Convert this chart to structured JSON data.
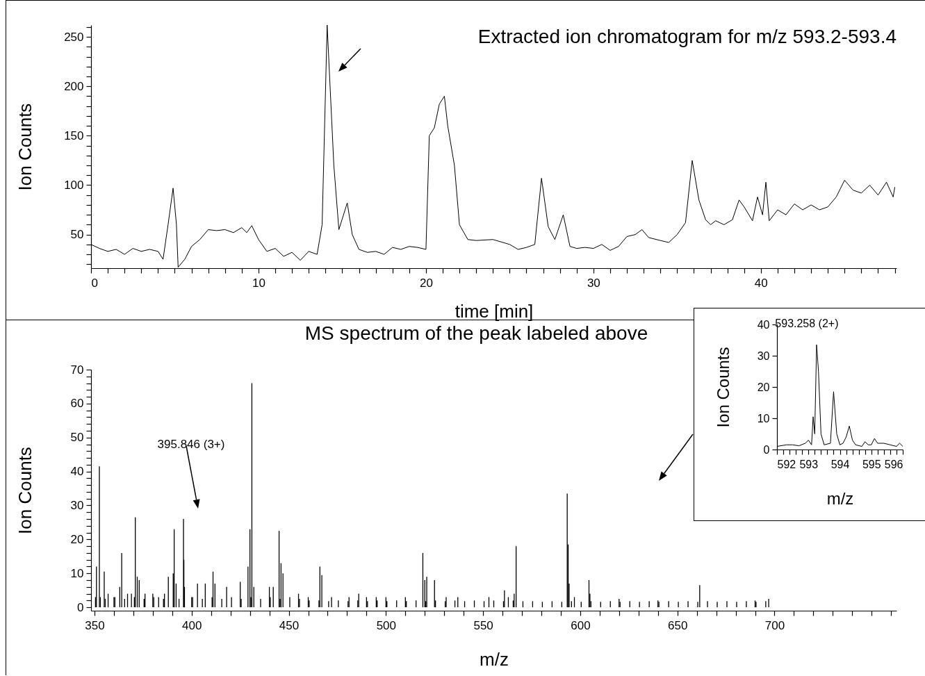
{
  "chart_data": [
    {
      "type": "line",
      "title": "Extracted ion chromatogram for m/z 593.2-593.4",
      "xlabel": "time [min]",
      "ylabel": "Ion Counts",
      "x": [
        0,
        0.5,
        1,
        1.5,
        2,
        2.5,
        3,
        3.5,
        4,
        4.3,
        4.6,
        4.9,
        5.1,
        5.2,
        5.6,
        6,
        6.5,
        7,
        7.5,
        8,
        8.5,
        9,
        9.3,
        9.6,
        10,
        10.5,
        11,
        11.5,
        12,
        12.5,
        13,
        13.5,
        13.8,
        14.1,
        14.5,
        14.8,
        15.3,
        15.6,
        16,
        16.5,
        17,
        17.5,
        18,
        18.5,
        19,
        19.5,
        20,
        20.2,
        20.5,
        20.8,
        21.1,
        21.3,
        21.7,
        22,
        22.5,
        23,
        24,
        25,
        25.5,
        26,
        26.5,
        26.9,
        27.3,
        27.7,
        28.2,
        28.6,
        29,
        29.5,
        30,
        30.5,
        31,
        31.5,
        32,
        32.5,
        32.9,
        33.3,
        34,
        34.5,
        35,
        35.5,
        35.9,
        36.3,
        36.7,
        37,
        37.3,
        37.8,
        38.3,
        38.7,
        39,
        39.5,
        39.8,
        40.1,
        40.3,
        40.5,
        41,
        41.5,
        42,
        42.5,
        43,
        43.5,
        44,
        44.5,
        45,
        45.5,
        46,
        46.5,
        47,
        47.5,
        47.9,
        48
      ],
      "series": [
        {
          "color": "#000000",
          "values": [
            40,
            36,
            33,
            35,
            30,
            36,
            33,
            35,
            33,
            25,
            60,
            97,
            60,
            17,
            25,
            38,
            45,
            55,
            54,
            55,
            52,
            57,
            52,
            59,
            45,
            33,
            36,
            28,
            32,
            24,
            33,
            30,
            60,
            262,
            120,
            55,
            82,
            50,
            35,
            32,
            33,
            30,
            37,
            35,
            38,
            37,
            35,
            150,
            158,
            182,
            190,
            160,
            120,
            60,
            45,
            44,
            45,
            40,
            35,
            37,
            40,
            107,
            58,
            45,
            70,
            38,
            36,
            37,
            36,
            40,
            34,
            38,
            48,
            50,
            55,
            47,
            44,
            42,
            50,
            62,
            125,
            85,
            65,
            60,
            64,
            60,
            65,
            85,
            78,
            64,
            88,
            70,
            103,
            64,
            75,
            70,
            81,
            75,
            80,
            75,
            78,
            88,
            105,
            95,
            92,
            100,
            90,
            103,
            88,
            98
          ]
        }
      ],
      "xlim": [
        0,
        48.1
      ],
      "ylim": [
        16,
        262
      ],
      "xticks": [
        0,
        {
          "value": 1,
          "label": null
        },
        {
          "value": 2,
          "label": null
        },
        {
          "value": 3,
          "label": null
        },
        {
          "value": 4,
          "label": null
        },
        {
          "value": 5,
          "label": null
        },
        {
          "value": 6,
          "label": null
        },
        {
          "value": 7,
          "label": null
        },
        {
          "value": 8,
          "label": null
        },
        {
          "value": 9,
          "label": null
        },
        10,
        {
          "value": 11,
          "label": null
        },
        {
          "value": 12,
          "label": null
        },
        {
          "value": 13,
          "label": null
        },
        {
          "value": 14,
          "label": null
        },
        {
          "value": 15,
          "label": null
        },
        {
          "value": 16,
          "label": null
        },
        {
          "value": 17,
          "label": null
        },
        {
          "value": 18,
          "label": null
        },
        {
          "value": 19,
          "label": null
        },
        20,
        {
          "value": 21,
          "label": null
        },
        {
          "value": 22,
          "label": null
        },
        {
          "value": 23,
          "label": null
        },
        {
          "value": 24,
          "label": null
        },
        {
          "value": 25,
          "label": null
        },
        {
          "value": 26,
          "label": null
        },
        {
          "value": 27,
          "label": null
        },
        {
          "value": 28,
          "label": null
        },
        {
          "value": 29,
          "label": null
        },
        30,
        {
          "value": 31,
          "label": null
        },
        {
          "value": 32,
          "label": null
        },
        {
          "value": 33,
          "label": null
        },
        {
          "value": 34,
          "label": null
        },
        {
          "value": 35,
          "label": null
        },
        {
          "value": 36,
          "label": null
        },
        {
          "value": 37,
          "label": null
        },
        {
          "value": 38,
          "label": null
        },
        {
          "value": 39,
          "label": null
        },
        40,
        {
          "value": 41,
          "label": null
        },
        {
          "value": 42,
          "label": null
        },
        {
          "value": 43,
          "label": null
        },
        {
          "value": 44,
          "label": null
        },
        {
          "value": 45,
          "label": null
        },
        {
          "value": 46,
          "label": null
        },
        {
          "value": 47,
          "label": null
        },
        {
          "value": 48,
          "label": null
        }
      ],
      "yticks": [
        {
          "value": 20,
          "label": null
        },
        {
          "value": 30,
          "label": null
        },
        {
          "value": 40,
          "label": null
        },
        50,
        {
          "value": 60,
          "label": null
        },
        {
          "value": 70,
          "label": null
        },
        {
          "value": 80,
          "label": null
        },
        {
          "value": 90,
          "label": null
        },
        100,
        {
          "value": 110,
          "label": null
        },
        {
          "value": 120,
          "label": null
        },
        {
          "value": 130,
          "label": null
        },
        {
          "value": 140,
          "label": null
        },
        150,
        {
          "value": 160,
          "label": null
        },
        {
          "value": 170,
          "label": null
        },
        {
          "value": 180,
          "label": null
        },
        {
          "value": 190,
          "label": null
        },
        200,
        {
          "value": 210,
          "label": null
        },
        {
          "value": 220,
          "label": null
        },
        {
          "value": 230,
          "label": null
        },
        {
          "value": 240,
          "label": null
        },
        250,
        {
          "value": 260,
          "label": null
        }
      ],
      "marker": "none",
      "line_style": "solid"
    },
    {
      "type": "bar",
      "title": "MS spectrum of the peak labeled above",
      "xlabel": "m/z",
      "ylabel": "Ion Counts",
      "annotations": [
        "395.846 (3+)"
      ],
      "x": [
        350.5,
        351,
        352.5,
        353,
        355,
        355.5,
        357,
        360,
        360.5,
        363,
        364,
        365.5,
        367,
        369,
        370.5,
        371,
        372,
        373,
        375.5,
        376,
        380,
        380.5,
        383,
        385.5,
        386,
        388,
        390.5,
        391,
        392,
        393.5,
        395.8,
        396,
        396.3,
        400,
        400.5,
        403,
        405.5,
        407,
        410.5,
        411,
        412,
        415.5,
        418,
        420.5,
        425,
        425.5,
        429,
        430,
        430.5,
        431,
        432,
        435.5,
        440,
        440.5,
        442,
        445,
        445.5,
        446,
        447,
        450.5,
        455,
        455.5,
        460,
        460.5,
        465.5,
        466,
        467,
        470.5,
        472,
        475.5,
        480.5,
        481,
        485.5,
        486,
        490,
        490.5,
        495,
        495.5,
        500,
        500.5,
        505.5,
        510,
        510.5,
        515.5,
        519,
        520,
        520.5,
        521,
        525,
        525.5,
        530.5,
        531,
        535.5,
        537,
        540.5,
        545.5,
        550.5,
        553,
        555.5,
        560.5,
        561,
        563,
        565.5,
        566,
        567,
        570.5,
        575.5,
        580.5,
        585.5,
        590.5,
        593.3,
        593.8,
        594.3,
        595.5,
        597,
        600.5,
        604.5,
        605,
        605.5,
        610.5,
        615.5,
        620,
        620.5,
        625.5,
        630.5,
        635.5,
        640,
        640.5,
        645.5,
        650.5,
        655.5,
        660.5,
        661.5,
        665.5,
        670.5,
        675.5,
        680.5,
        685.5,
        690,
        690.5,
        695.5,
        697
      ],
      "series": [
        {
          "color": "#000000",
          "values": [
            3,
            12,
            41.5,
            3,
            10.5,
            2.5,
            4,
            3,
            3,
            6,
            16,
            2.5,
            4,
            4,
            3,
            26.5,
            9,
            8,
            2.5,
            4,
            4,
            3,
            3,
            2.5,
            4,
            9,
            10,
            23,
            7,
            2.5,
            26,
            14,
            6,
            3,
            3,
            7,
            2.5,
            7,
            3,
            10.5,
            7,
            2.5,
            6,
            3,
            7.5,
            2.5,
            12,
            23,
            3,
            66,
            6,
            2.5,
            6,
            3,
            6,
            22.5,
            2.5,
            13,
            10,
            3,
            4,
            2.5,
            3,
            2,
            2,
            12,
            9.5,
            1.8,
            3,
            2,
            1.8,
            3,
            2,
            4,
            3,
            1.8,
            3,
            2,
            3,
            1.8,
            2,
            3,
            1.8,
            2,
            16,
            8,
            1.8,
            9,
            8,
            2,
            1.8,
            3,
            2,
            3,
            1.8,
            2,
            1.8,
            3,
            2,
            1.8,
            5,
            3,
            2,
            4,
            18,
            1.8,
            1.8,
            1.6,
            1.8,
            1.6,
            33.5,
            18.5,
            7,
            1.8,
            3,
            1.6,
            8,
            4,
            1.8,
            1.6,
            1.8,
            2.5,
            1.6,
            1.8,
            1.6,
            1.8,
            2,
            1.6,
            1.8,
            1.6,
            1.8,
            1.6,
            6.5,
            1.8,
            1.6,
            1.8,
            1.6,
            1.8,
            2,
            1.6,
            1.8,
            2.5
          ]
        }
      ],
      "xlim": [
        350,
        761
      ],
      "ylim": [
        -1,
        70
      ],
      "xticks": [
        350,
        {
          "value": 360,
          "label": null
        },
        {
          "value": 370,
          "label": null
        },
        {
          "value": 380,
          "label": null
        },
        {
          "value": 390,
          "label": null
        },
        400,
        {
          "value": 410,
          "label": null
        },
        {
          "value": 420,
          "label": null
        },
        {
          "value": 430,
          "label": null
        },
        {
          "value": 440,
          "label": null
        },
        450,
        {
          "value": 460,
          "label": null
        },
        {
          "value": 470,
          "label": null
        },
        {
          "value": 480,
          "label": null
        },
        {
          "value": 490,
          "label": null
        },
        500,
        {
          "value": 510,
          "label": null
        },
        {
          "value": 520,
          "label": null
        },
        {
          "value": 530,
          "label": null
        },
        {
          "value": 540,
          "label": null
        },
        550,
        {
          "value": 560,
          "label": null
        },
        {
          "value": 570,
          "label": null
        },
        {
          "value": 580,
          "label": null
        },
        {
          "value": 590,
          "label": null
        },
        600,
        {
          "value": 610,
          "label": null
        },
        {
          "value": 620,
          "label": null
        },
        {
          "value": 630,
          "label": null
        },
        {
          "value": 640,
          "label": null
        },
        650,
        {
          "value": 660,
          "label": null
        },
        {
          "value": 670,
          "label": null
        },
        {
          "value": 680,
          "label": null
        },
        {
          "value": 690,
          "label": null
        },
        700,
        {
          "value": 710,
          "label": null
        },
        {
          "value": 720,
          "label": null
        },
        {
          "value": 730,
          "label": null
        },
        {
          "value": 740,
          "label": null
        },
        {
          "value": 750,
          "label": null
        },
        {
          "value": 760,
          "label": null
        }
      ],
      "yticks": [
        0,
        {
          "value": 2,
          "label": null
        },
        {
          "value": 4,
          "label": null
        },
        {
          "value": 6,
          "label": null
        },
        {
          "value": 8,
          "label": null
        },
        10,
        {
          "value": 12,
          "label": null
        },
        {
          "value": 14,
          "label": null
        },
        {
          "value": 16,
          "label": null
        },
        {
          "value": 18,
          "label": null
        },
        20,
        {
          "value": 22,
          "label": null
        },
        {
          "value": 24,
          "label": null
        },
        {
          "value": 26,
          "label": null
        },
        {
          "value": 28,
          "label": null
        },
        30,
        {
          "value": 32,
          "label": null
        },
        {
          "value": 34,
          "label": null
        },
        {
          "value": 36,
          "label": null
        },
        {
          "value": 38,
          "label": null
        },
        40,
        {
          "value": 42,
          "label": null
        },
        {
          "value": 44,
          "label": null
        },
        {
          "value": 46,
          "label": null
        },
        {
          "value": 48,
          "label": null
        },
        50,
        {
          "value": 52,
          "label": null
        },
        {
          "value": 54,
          "label": null
        },
        {
          "value": 56,
          "label": null
        },
        {
          "value": 58,
          "label": null
        },
        60,
        {
          "value": 62,
          "label": null
        },
        {
          "value": 64,
          "label": null
        },
        {
          "value": 66,
          "label": null
        },
        {
          "value": 68,
          "label": null
        },
        70
      ]
    },
    {
      "type": "line",
      "xlabel": "m/z",
      "ylabel": "Ion Counts",
      "annotations": [
        {
          "text": "593.258 (2+)",
          "x": 593.258,
          "y": 33.5
        }
      ],
      "x": [
        592,
        592.3,
        592.5,
        592.7,
        592.9,
        593,
        593.1,
        593.15,
        593.2,
        593.26,
        593.32,
        593.4,
        593.5,
        593.7,
        593.8,
        593.9,
        594,
        594.1,
        594.2,
        594.3,
        594.4,
        594.5,
        594.7,
        594.8,
        594.9,
        595,
        595.1,
        595.2,
        595.4,
        595.6,
        595.8,
        595.9,
        596
      ],
      "series": [
        {
          "color": "#000000",
          "values": [
            1,
            1.5,
            1.5,
            1.2,
            2,
            3,
            1.5,
            10.5,
            5,
            33.5,
            25,
            5,
            1.5,
            2,
            18.5,
            5,
            1.5,
            2,
            4,
            7.5,
            3,
            1.5,
            1,
            2.5,
            1.5,
            1.5,
            3.5,
            2,
            2,
            1.5,
            1,
            2,
            1
          ]
        }
      ],
      "xlim": [
        592,
        596
      ],
      "ylim": [
        0,
        40
      ],
      "xticks": [
        592,
        {
          "value": 592.2,
          "label": null
        },
        {
          "value": 592.4,
          "label": null
        },
        {
          "value": 592.6,
          "label": null
        },
        {
          "value": 592.8,
          "label": null
        },
        593,
        {
          "value": 593.2,
          "label": null
        },
        {
          "value": 593.4,
          "label": null
        },
        {
          "value": 593.6,
          "label": null
        },
        {
          "value": 593.8,
          "label": null
        },
        594,
        {
          "value": 594.2,
          "label": null
        },
        {
          "value": 594.4,
          "label": null
        },
        {
          "value": 594.6,
          "label": null
        },
        {
          "value": 594.8,
          "label": null
        },
        595,
        {
          "value": 595.2,
          "label": null
        },
        {
          "value": 595.4,
          "label": null
        },
        {
          "value": 595.6,
          "label": null
        },
        {
          "value": 595.8,
          "label": null
        },
        596
      ],
      "yticks": [
        0,
        10,
        20,
        30,
        40
      ],
      "marker": "none",
      "line_style": "solid"
    }
  ]
}
